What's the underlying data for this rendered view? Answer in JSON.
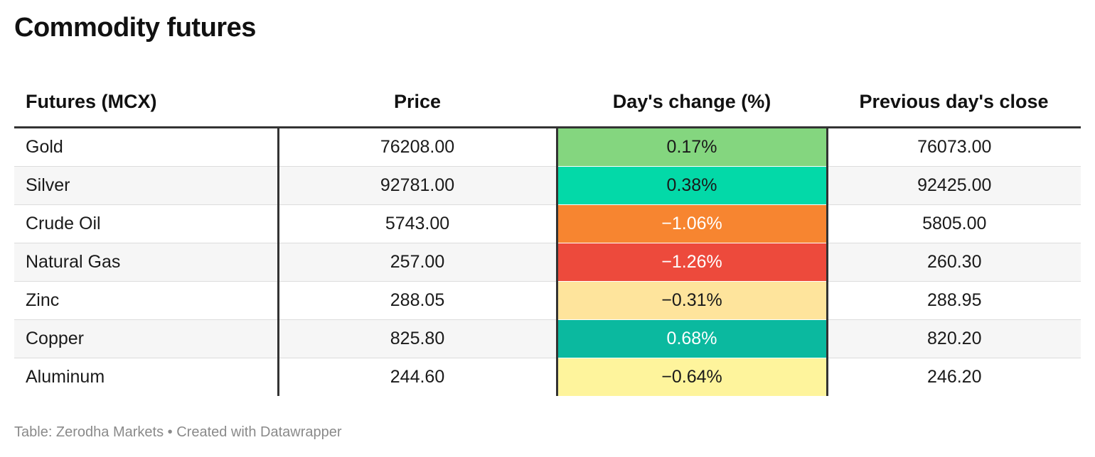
{
  "title": "Commodity futures",
  "footer": "Table: Zerodha Markets • Created with Datawrapper",
  "chart_data": {
    "type": "table",
    "title": "Commodity futures",
    "columns": [
      "Futures (MCX)",
      "Price",
      "Day's change (%)",
      "Previous day's close"
    ],
    "rows": [
      {
        "name": "Gold",
        "price": "76208.00",
        "change": "0.17%",
        "prev_close": "76073.00",
        "color": "#84d67f",
        "text_color": "#1a1a1a"
      },
      {
        "name": "Silver",
        "price": "92781.00",
        "change": "0.38%",
        "prev_close": "92425.00",
        "color": "#03d9a8",
        "text_color": "#1a1a1a"
      },
      {
        "name": "Crude Oil",
        "price": "5743.00",
        "change": "−1.06%",
        "prev_close": "5805.00",
        "color": "#f78530",
        "text_color": "#ffffff"
      },
      {
        "name": "Natural Gas",
        "price": "257.00",
        "change": "−1.26%",
        "prev_close": "260.30",
        "color": "#ed4a3c",
        "text_color": "#ffffff"
      },
      {
        "name": "Zinc",
        "price": "288.05",
        "change": "−0.31%",
        "prev_close": "288.95",
        "color": "#fee49c",
        "text_color": "#1a1a1a"
      },
      {
        "name": "Copper",
        "price": "825.80",
        "change": "0.68%",
        "prev_close": "820.20",
        "color": "#0bb99f",
        "text_color": "#ffffff"
      },
      {
        "name": "Aluminum",
        "price": "244.60",
        "change": "−0.64%",
        "prev_close": "246.20",
        "color": "#fef49c",
        "text_color": "#1a1a1a"
      }
    ],
    "values": [
      0.17,
      0.38,
      -1.06,
      -1.26,
      -0.31,
      0.68,
      -0.64
    ]
  }
}
